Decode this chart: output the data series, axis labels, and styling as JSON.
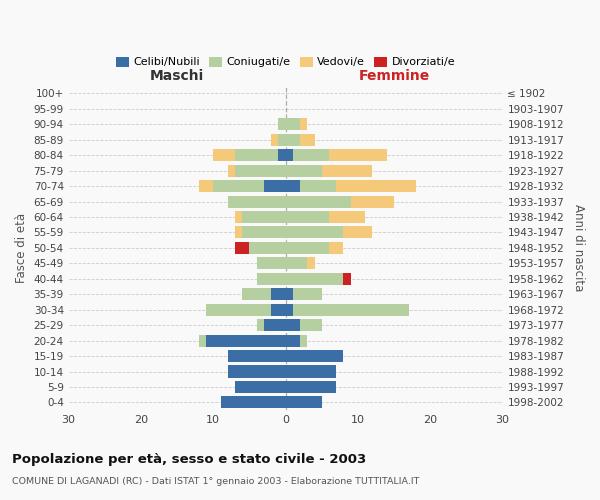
{
  "age_groups": [
    "0-4",
    "5-9",
    "10-14",
    "15-19",
    "20-24",
    "25-29",
    "30-34",
    "35-39",
    "40-44",
    "45-49",
    "50-54",
    "55-59",
    "60-64",
    "65-69",
    "70-74",
    "75-79",
    "80-84",
    "85-89",
    "90-94",
    "95-99",
    "100+"
  ],
  "birth_years": [
    "1998-2002",
    "1993-1997",
    "1988-1992",
    "1983-1987",
    "1978-1982",
    "1973-1977",
    "1968-1972",
    "1963-1967",
    "1958-1962",
    "1953-1957",
    "1948-1952",
    "1943-1947",
    "1938-1942",
    "1933-1937",
    "1928-1932",
    "1923-1927",
    "1918-1922",
    "1913-1917",
    "1908-1912",
    "1903-1907",
    "≤ 1902"
  ],
  "males": {
    "celibi": [
      9,
      7,
      8,
      8,
      11,
      3,
      2,
      2,
      0,
      0,
      0,
      0,
      0,
      0,
      3,
      0,
      1,
      0,
      0,
      0,
      0
    ],
    "coniugati": [
      0,
      0,
      0,
      0,
      1,
      1,
      9,
      4,
      4,
      4,
      5,
      6,
      6,
      8,
      7,
      7,
      6,
      1,
      1,
      0,
      0
    ],
    "vedovi": [
      0,
      0,
      0,
      0,
      0,
      0,
      0,
      0,
      0,
      0,
      0,
      1,
      1,
      0,
      2,
      1,
      3,
      1,
      0,
      0,
      0
    ],
    "divorziati": [
      0,
      0,
      0,
      0,
      0,
      0,
      0,
      0,
      0,
      0,
      2,
      0,
      0,
      0,
      0,
      0,
      0,
      0,
      0,
      0,
      0
    ]
  },
  "females": {
    "nubili": [
      5,
      7,
      7,
      8,
      2,
      2,
      1,
      1,
      0,
      0,
      0,
      0,
      0,
      0,
      2,
      0,
      1,
      0,
      0,
      0,
      0
    ],
    "coniugate": [
      0,
      0,
      0,
      0,
      1,
      3,
      16,
      4,
      8,
      3,
      6,
      8,
      6,
      9,
      5,
      5,
      5,
      2,
      2,
      0,
      0
    ],
    "vedove": [
      0,
      0,
      0,
      0,
      0,
      0,
      0,
      0,
      0,
      1,
      2,
      4,
      5,
      6,
      11,
      7,
      8,
      2,
      1,
      0,
      0
    ],
    "divorziate": [
      0,
      0,
      0,
      0,
      0,
      0,
      0,
      0,
      1,
      0,
      0,
      0,
      0,
      0,
      0,
      0,
      0,
      0,
      0,
      0,
      0
    ]
  },
  "colors": {
    "celibi": "#3a6ea5",
    "coniugati": "#b5cfa0",
    "vedovi": "#f5c97a",
    "divorziati": "#cc2222"
  },
  "xlim": 30,
  "title": "Popolazione per età, sesso e stato civile - 2003",
  "subtitle": "COMUNE DI LAGANADI (RC) - Dati ISTAT 1° gennaio 2003 - Elaborazione TUTTITALIA.IT",
  "ylabel_left": "Fasce di età",
  "ylabel_right": "Anni di nascita",
  "xlabel_left": "Maschi",
  "xlabel_right": "Femmine",
  "background_color": "#f9f9f9",
  "grid_color": "#cccccc"
}
